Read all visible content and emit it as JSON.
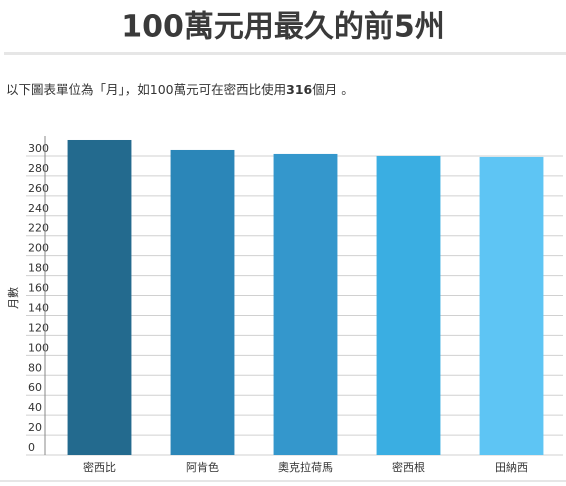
{
  "chart_data": {
    "type": "bar",
    "title": "100萬元用最久的前5州",
    "subtitle": [
      "以下圖表單位為「月」，如100萬元可在密西比使用",
      "316",
      "個月 。"
    ],
    "y_label": "月數",
    "categories": [
      "密西比",
      "阿肯色",
      "奧克拉荷馬",
      "密西根",
      "田納西"
    ],
    "values": [
      316,
      306,
      302,
      300,
      299
    ],
    "colors": [
      "#236a8e",
      "#2b86b8",
      "#3497cc",
      "#3aaee2",
      "#5ec5f4"
    ],
    "ylim": [
      0,
      320
    ],
    "yticks": [
      0,
      20,
      40,
      60,
      80,
      100,
      120,
      140,
      160,
      180,
      200,
      220,
      240,
      260,
      280,
      300
    ],
    "grid": true
  }
}
